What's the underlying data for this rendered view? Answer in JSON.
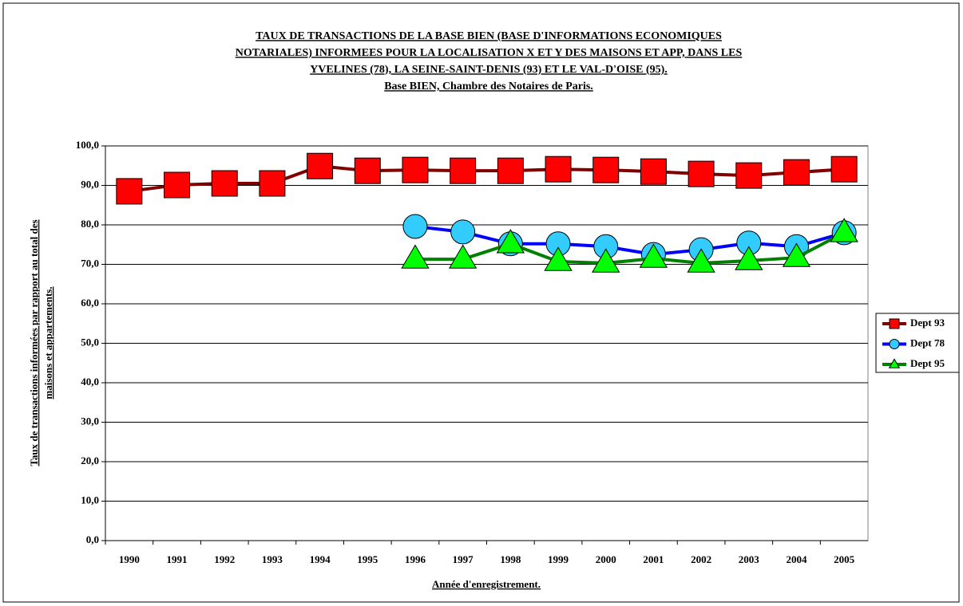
{
  "chart_data": {
    "type": "line",
    "title": [
      "TAUX DE TRANSACTIONS DE LA BASE BIEN (BASE D'INFORMATIONS ECONOMIQUES ",
      "NOTARIALES) INFORMEES POUR LA LOCALISATION X ET Y DES MAISONS ET APP, DANS LES",
      "YVELINES (78), LA SEINE-SAINT-DENIS (93) ET LE VAL-D'OISE (95). ",
      "Base BIEN, Chambre des Notaires de Paris."
    ],
    "x_label": "Année d'enregistrement.",
    "y_label": [
      "Taux de transactions informées par rapport au total des",
      "maisons et appartements."
    ],
    "categories": [
      "1990",
      "1991",
      "1992",
      "1993",
      "1994",
      "1995",
      "1996",
      "1997",
      "1998",
      "1999",
      "2000",
      "2001",
      "2002",
      "2003",
      "2004",
      "2005"
    ],
    "series": [
      {
        "name": "Dept 93",
        "color": "#800000",
        "marker": "square",
        "marker_color": "#ff0000",
        "values": [
          88.5,
          90.1,
          90.5,
          90.5,
          94.9,
          93.7,
          93.9,
          93.7,
          93.7,
          94.1,
          93.9,
          93.5,
          92.9,
          92.5,
          93.3,
          94.1
        ]
      },
      {
        "name": "Dept 78",
        "color": "#0000ff",
        "marker": "circle",
        "marker_color": "#33ccff",
        "values": [
          null,
          null,
          null,
          null,
          null,
          null,
          79.6,
          78.2,
          75.2,
          75.2,
          74.5,
          72.5,
          73.7,
          75.4,
          74.5,
          78.0
        ]
      },
      {
        "name": "Dept 95",
        "color": "#008000",
        "marker": "triangle",
        "marker_color": "#00ff00",
        "values": [
          null,
          null,
          null,
          null,
          null,
          null,
          71.3,
          71.3,
          75.2,
          70.7,
          70.3,
          71.5,
          70.3,
          70.9,
          71.7,
          78.0
        ]
      }
    ],
    "ylim": [
      0,
      100
    ],
    "yticks": [
      {
        "value": 0,
        "label": "0,0"
      },
      {
        "value": 10,
        "label": "10,0"
      },
      {
        "value": 20,
        "label": "20,0"
      },
      {
        "value": 30,
        "label": "30,0"
      },
      {
        "value": 40,
        "label": "40,0"
      },
      {
        "value": 50,
        "label": "50,0"
      },
      {
        "value": 60,
        "label": "60,0"
      },
      {
        "value": 70,
        "label": "70,0"
      },
      {
        "value": 80,
        "label": "80,0"
      },
      {
        "value": 90,
        "label": "90,0"
      },
      {
        "value": 100,
        "label": "100,0"
      }
    ],
    "grid": true,
    "legend": "right"
  }
}
